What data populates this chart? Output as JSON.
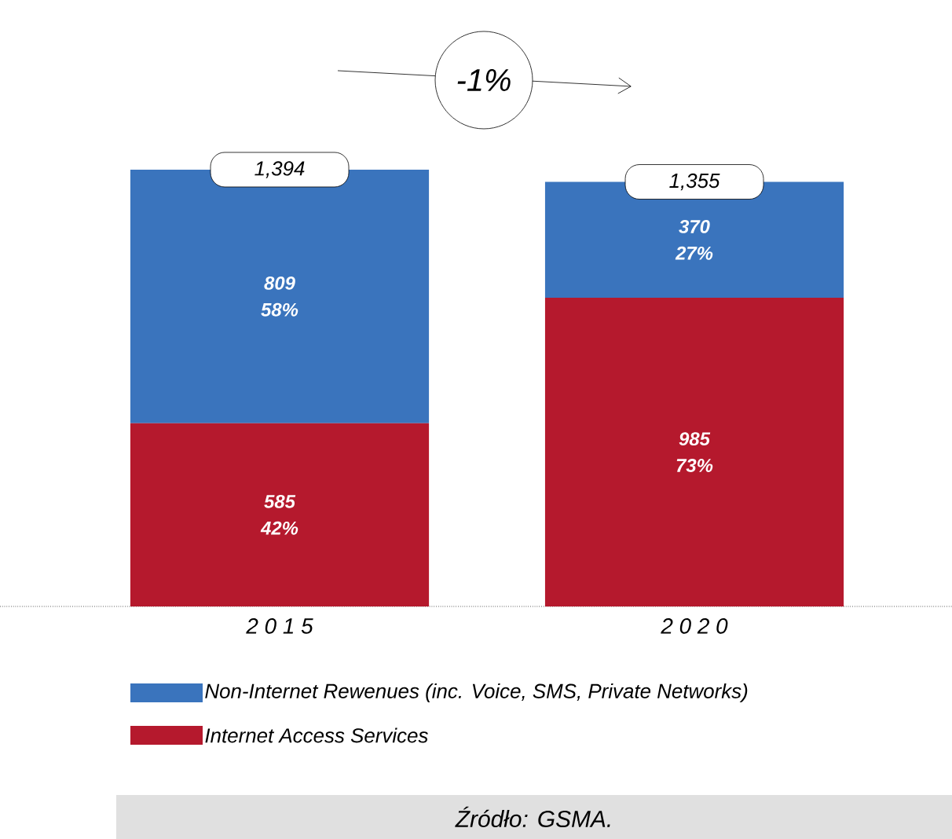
{
  "chart_data": {
    "type": "bar",
    "stacked": true,
    "categories": [
      "2 0 1 5",
      "2 0 2 0"
    ],
    "series": [
      {
        "name": "Internet Access Services",
        "color": "#b5192d",
        "values": [
          585,
          985
        ],
        "value_labels": [
          "585 42%",
          "985 73%"
        ]
      },
      {
        "name": "Non-Internet Rewenues (inc. Voice, SMS, Private Networks)",
        "color": "#3a74bd",
        "values": [
          809,
          370
        ],
        "value_labels": [
          "809 58%",
          "370 27%"
        ]
      }
    ],
    "totals": [
      "1,394",
      "1,355"
    ],
    "legend": "bottom",
    "annotations": [
      "-1%",
      "Źródło: GSMA."
    ]
  }
}
